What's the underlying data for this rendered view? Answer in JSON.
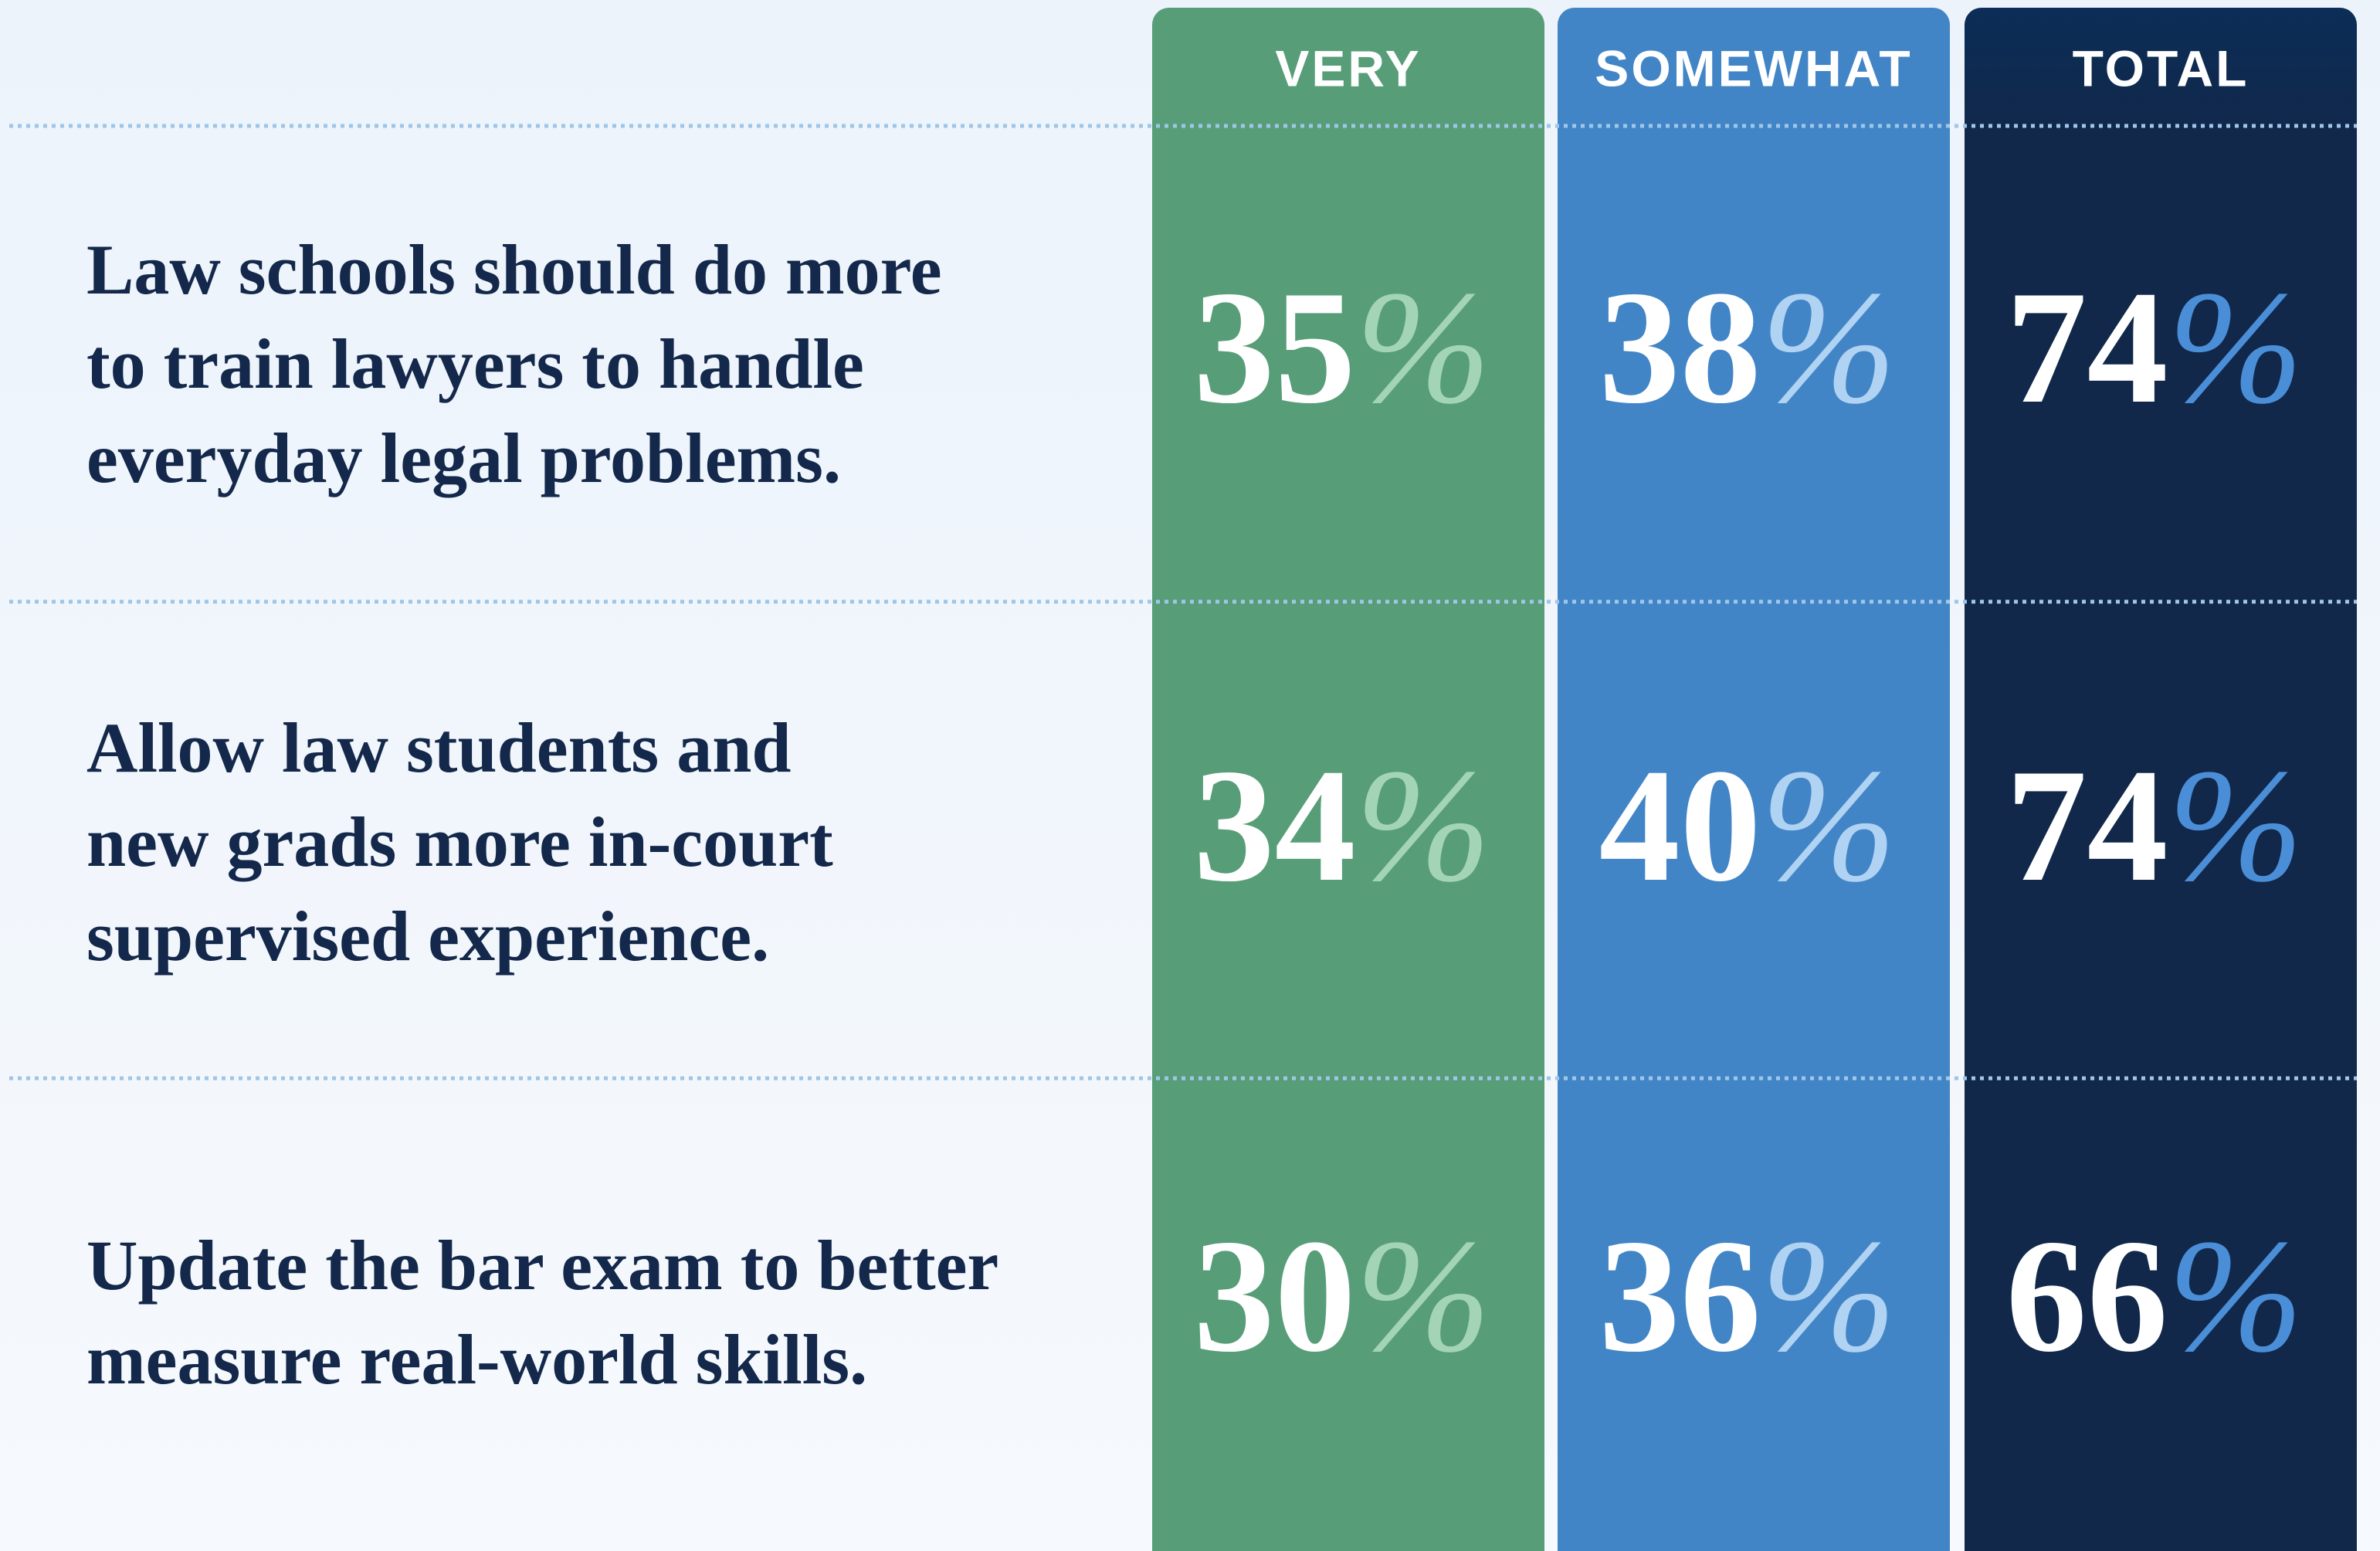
{
  "table": {
    "columns": [
      "VERY",
      "SOMEWHAT",
      "TOTAL"
    ],
    "rows": [
      {
        "label": [
          "Law schools should do more",
          "to train lawyers to handle",
          "everyday legal problems."
        ],
        "values": [
          "35%",
          "38%",
          "74%"
        ]
      },
      {
        "label": [
          "Allow law students and",
          "new grads more in-court",
          "supervised experience."
        ],
        "values": [
          "34%",
          "40%",
          "74%"
        ]
      },
      {
        "label": [
          "Update the bar exam to better",
          "measure real-world skills."
        ],
        "values": [
          "30%",
          "36%",
          "66%"
        ]
      }
    ]
  }
}
